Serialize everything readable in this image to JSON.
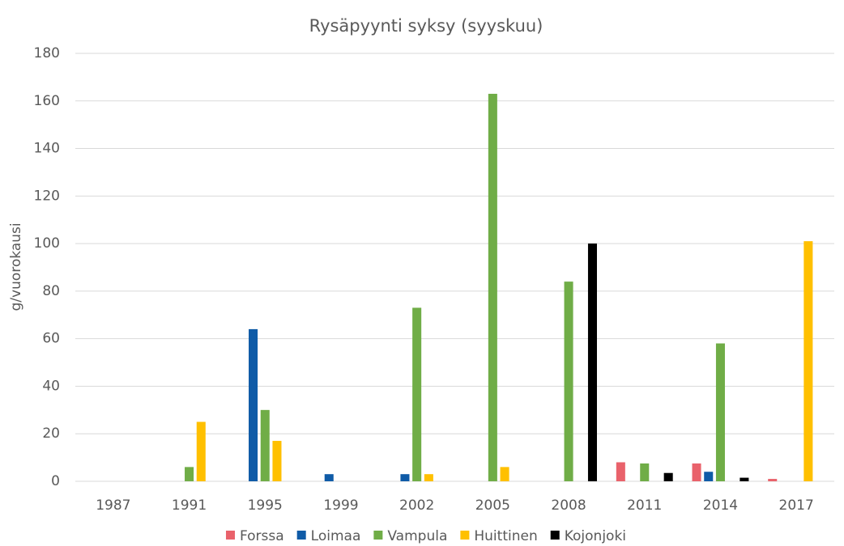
{
  "chart_data": {
    "type": "bar",
    "title": "Rysäpyynti syksy (syyskuu)",
    "y_label": "g/vuorokausi",
    "categories": [
      "1987",
      "1991",
      "1995",
      "1999",
      "2002",
      "2005",
      "2008",
      "2011",
      "2014",
      "2017"
    ],
    "series": [
      {
        "name": "Forssa",
        "color": "#e9626b",
        "values": [
          null,
          null,
          null,
          null,
          null,
          null,
          null,
          8,
          7.5,
          1
        ]
      },
      {
        "name": "Loimaa",
        "color": "#0f5ba7",
        "values": [
          null,
          null,
          64,
          3,
          3,
          null,
          null,
          null,
          4,
          null
        ]
      },
      {
        "name": "Vampula",
        "color": "#70ad47",
        "values": [
          null,
          6,
          30,
          null,
          73,
          163,
          84,
          7.5,
          58,
          null
        ]
      },
      {
        "name": "Huittinen",
        "color": "#ffc000",
        "values": [
          null,
          25,
          17,
          null,
          3,
          6,
          null,
          null,
          null,
          101
        ]
      },
      {
        "name": "Kojonjoki",
        "color": "#000000",
        "values": [
          null,
          null,
          null,
          null,
          null,
          null,
          100,
          3.5,
          1.5,
          null
        ]
      }
    ],
    "ylim": [
      0,
      180
    ],
    "yticks": [
      0,
      20,
      40,
      60,
      80,
      100,
      120,
      140,
      160,
      180
    ],
    "grid": true,
    "legend": "bottom"
  }
}
